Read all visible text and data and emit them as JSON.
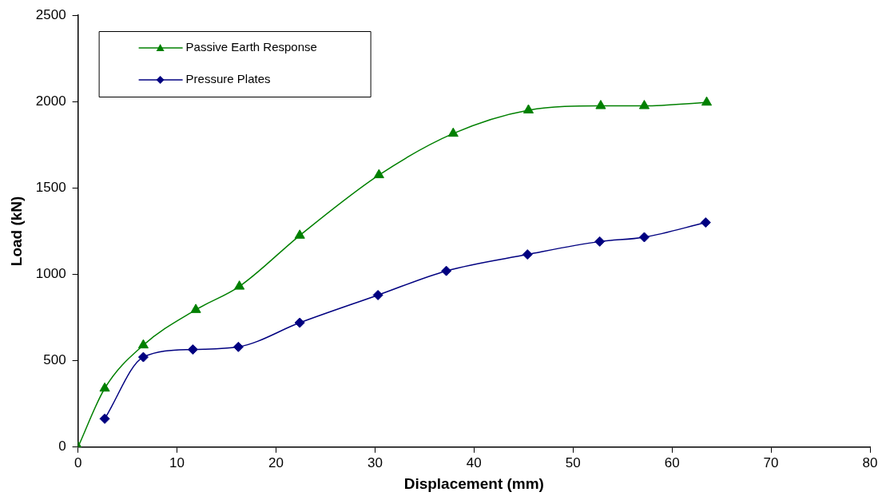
{
  "chart_data": {
    "type": "line",
    "xlabel": "Displacement (mm)",
    "ylabel": "Load (kN)",
    "xlim": [
      0,
      80
    ],
    "xticks": [
      0,
      10,
      20,
      30,
      40,
      50,
      60,
      70,
      80
    ],
    "ylim": [
      0,
      2500
    ],
    "yticks": [
      0,
      500,
      1000,
      1500,
      2000,
      2500
    ],
    "grid": false,
    "legend": "top left",
    "line_style": "solid",
    "series": [
      {
        "name": "Passive Earth Response",
        "color": "#008000",
        "marker": "triangle",
        "x": [
          0,
          2.7,
          6.6,
          11.9,
          16.3,
          22.4,
          30.4,
          37.9,
          45.5,
          52.8,
          57.2,
          63.5
        ],
        "values": [
          0,
          340,
          590,
          795,
          930,
          1225,
          1575,
          1815,
          1950,
          1975,
          1975,
          1995
        ]
      },
      {
        "name": "Pressure Plates",
        "color": "#000080",
        "marker": "diamond",
        "x": [
          2.7,
          6.6,
          11.6,
          16.2,
          22.4,
          30.3,
          37.2,
          45.4,
          52.7,
          57.2,
          63.4
        ],
        "values": [
          164,
          521,
          565,
          580,
          720,
          880,
          1020,
          1115,
          1190,
          1215,
          1300
        ]
      }
    ]
  }
}
